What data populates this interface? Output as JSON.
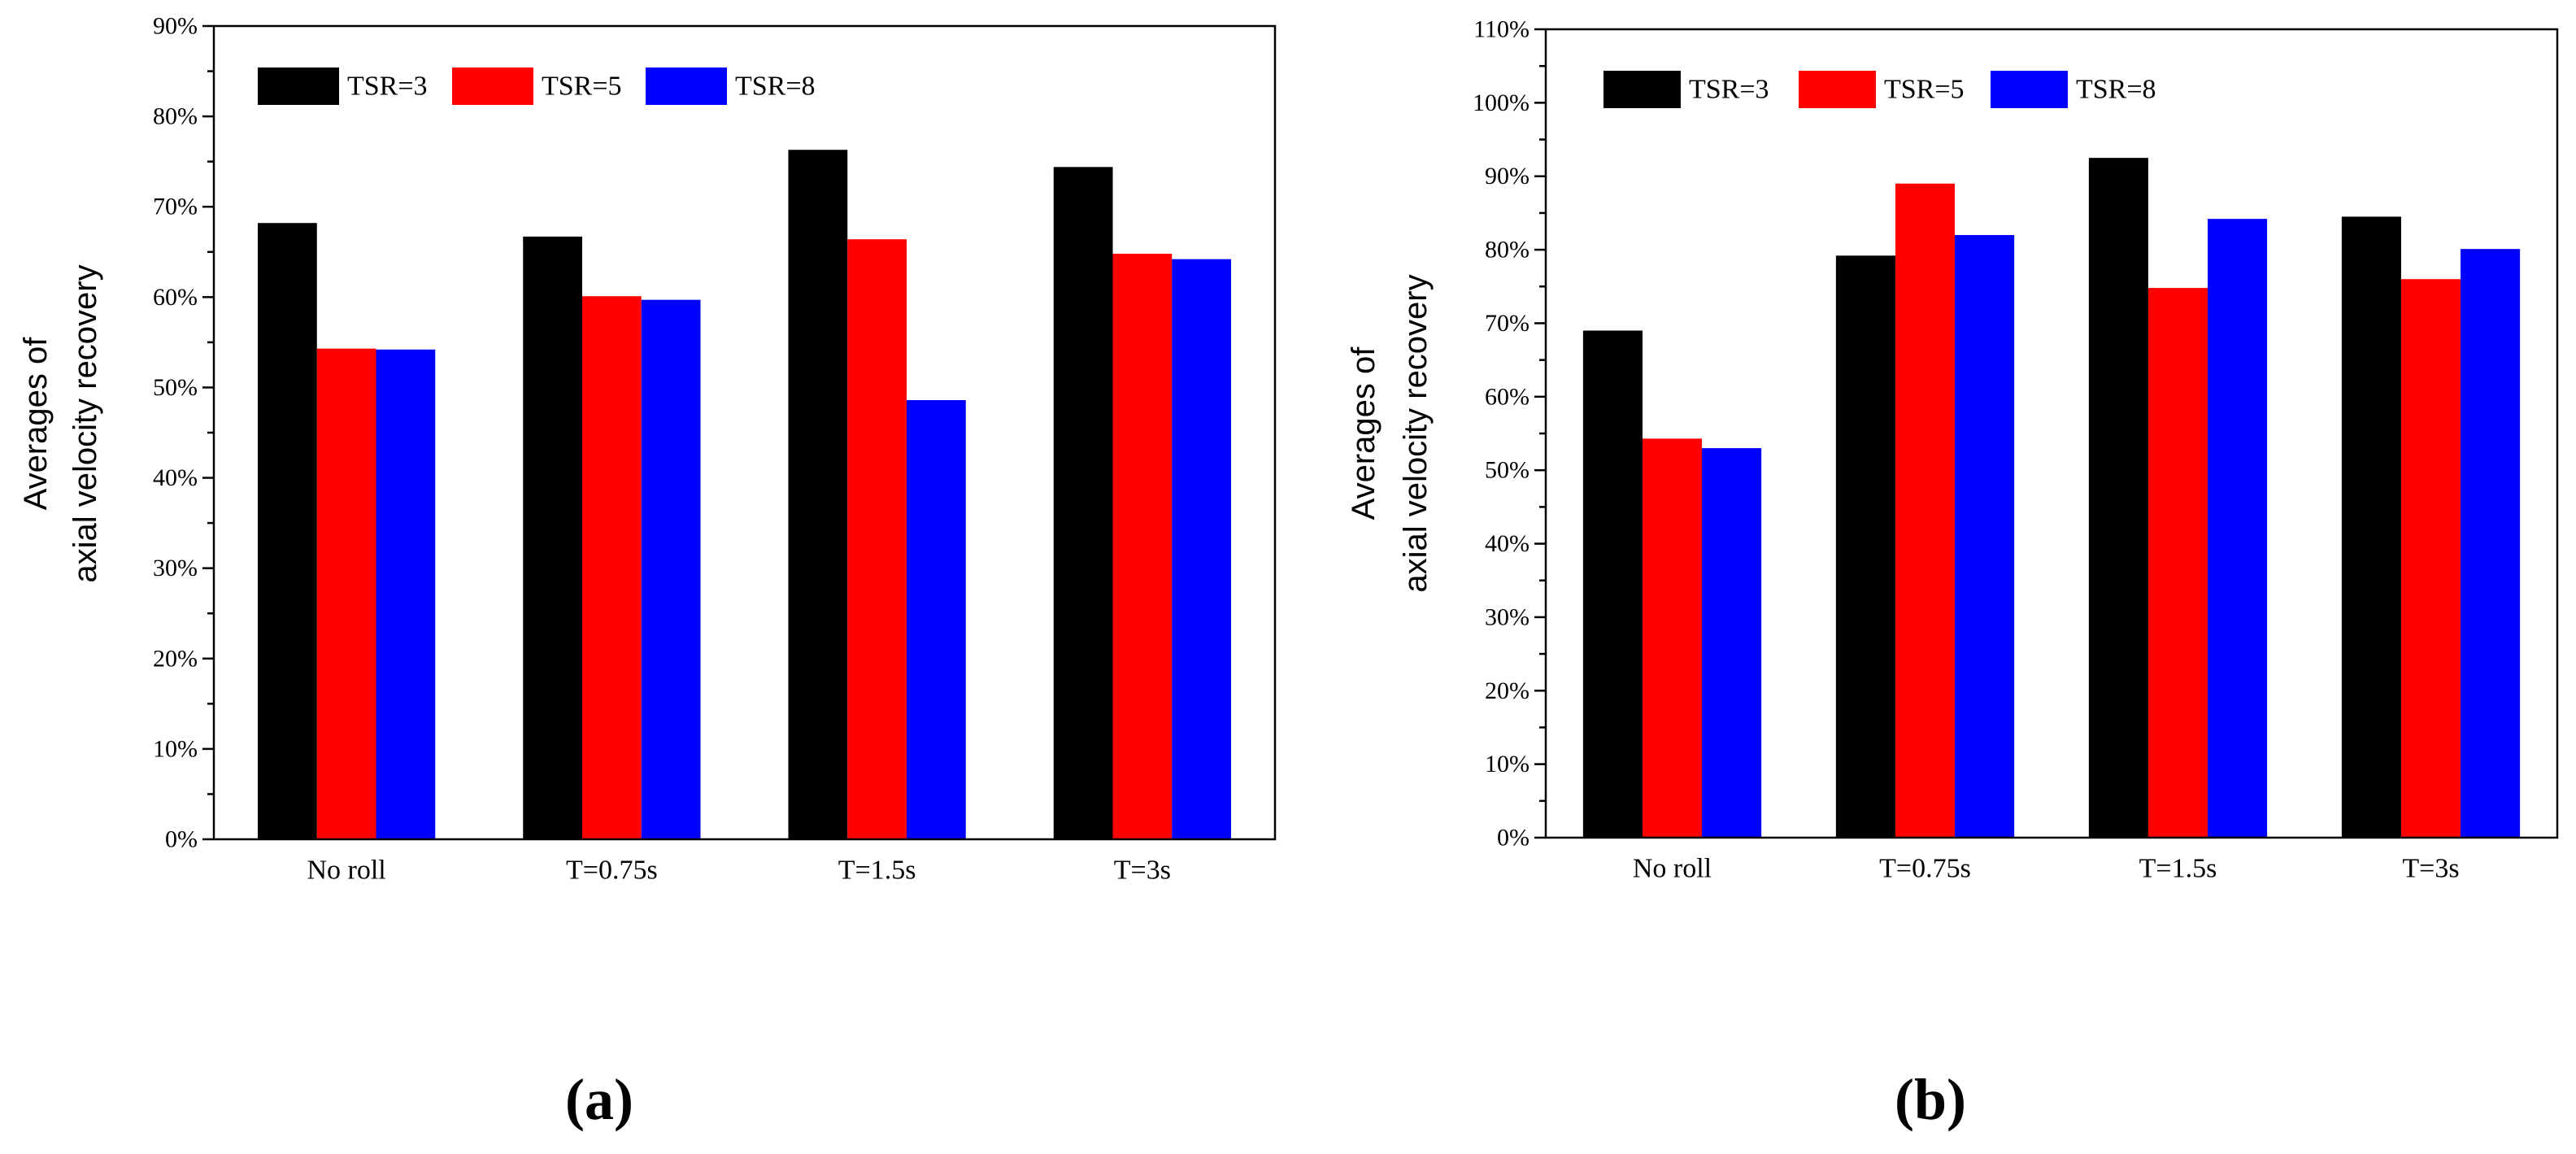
{
  "chart_data": [
    {
      "type": "bar",
      "panel_label": "(a)",
      "ylabel_lines": [
        "Averages of",
        "axial velocity recovery"
      ],
      "categories": [
        "No roll",
        "T=0.75s",
        "T=1.5s",
        "T=3s"
      ],
      "series": [
        {
          "name": "TSR=3",
          "color": "#000000",
          "values": [
            68.2,
            66.7,
            76.3,
            74.4
          ]
        },
        {
          "name": "TSR=5",
          "color": "#ff0000",
          "values": [
            54.3,
            60.1,
            66.4,
            64.8
          ]
        },
        {
          "name": "TSR=8",
          "color": "#0000ff",
          "values": [
            54.2,
            59.7,
            48.6,
            64.2
          ]
        }
      ],
      "ylim": [
        0,
        90
      ],
      "yticks": [
        0,
        10,
        20,
        30,
        40,
        50,
        60,
        70,
        80,
        90
      ],
      "ytick_labels": [
        "0%",
        "10%",
        "20%",
        "30%",
        "40%",
        "50%",
        "60%",
        "70%",
        "80%",
        "90%"
      ],
      "legend_position": "top-left",
      "grid": false
    },
    {
      "type": "bar",
      "panel_label": "(b)",
      "ylabel_lines": [
        "Averages of",
        "axial velocity recovery"
      ],
      "categories": [
        "No roll",
        "T=0.75s",
        "T=1.5s",
        "T=3s"
      ],
      "series": [
        {
          "name": "TSR=3",
          "color": "#000000",
          "values": [
            69.0,
            79.2,
            92.5,
            84.5
          ]
        },
        {
          "name": "TSR=5",
          "color": "#ff0000",
          "values": [
            54.3,
            89.0,
            74.8,
            76.0
          ]
        },
        {
          "name": "TSR=8",
          "color": "#0000ff",
          "values": [
            53.0,
            82.0,
            84.2,
            80.1
          ]
        }
      ],
      "ylim": [
        0,
        110
      ],
      "yticks": [
        0,
        10,
        20,
        30,
        40,
        50,
        60,
        70,
        80,
        90,
        100,
        110
      ],
      "ytick_labels": [
        "0%",
        "10%",
        "20%",
        "30%",
        "40%",
        "50%",
        "60%",
        "70%",
        "80%",
        "90%",
        "100%",
        "110%"
      ],
      "legend_position": "top-left",
      "grid": false
    }
  ]
}
